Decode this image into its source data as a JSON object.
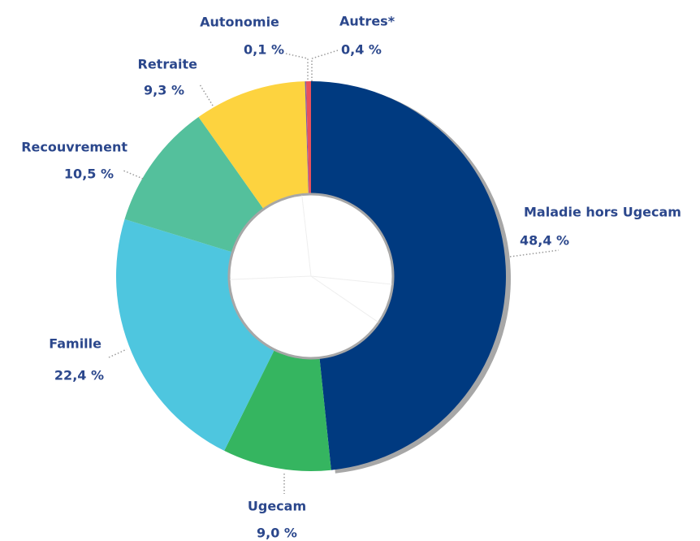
{
  "chart_data": {
    "type": "donut",
    "categories": [
      "Maladie hors Ugecam",
      "Ugecam",
      "Famille",
      "Recouvrement",
      "Retraite",
      "Autonomie",
      "Autres*"
    ],
    "values": [
      48.4,
      9.0,
      22.4,
      10.5,
      9.3,
      0.1,
      0.4
    ],
    "value_labels": [
      "48,4 %",
      "9,0 %",
      "22,4 %",
      "10,5 %",
      "9,3 %",
      "0,1 %",
      "0,4 %"
    ],
    "colors": [
      "#003a80",
      "#35b560",
      "#4ec6df",
      "#54c09c",
      "#fdd33f",
      "#7b5ea7",
      "#e8505b"
    ]
  }
}
